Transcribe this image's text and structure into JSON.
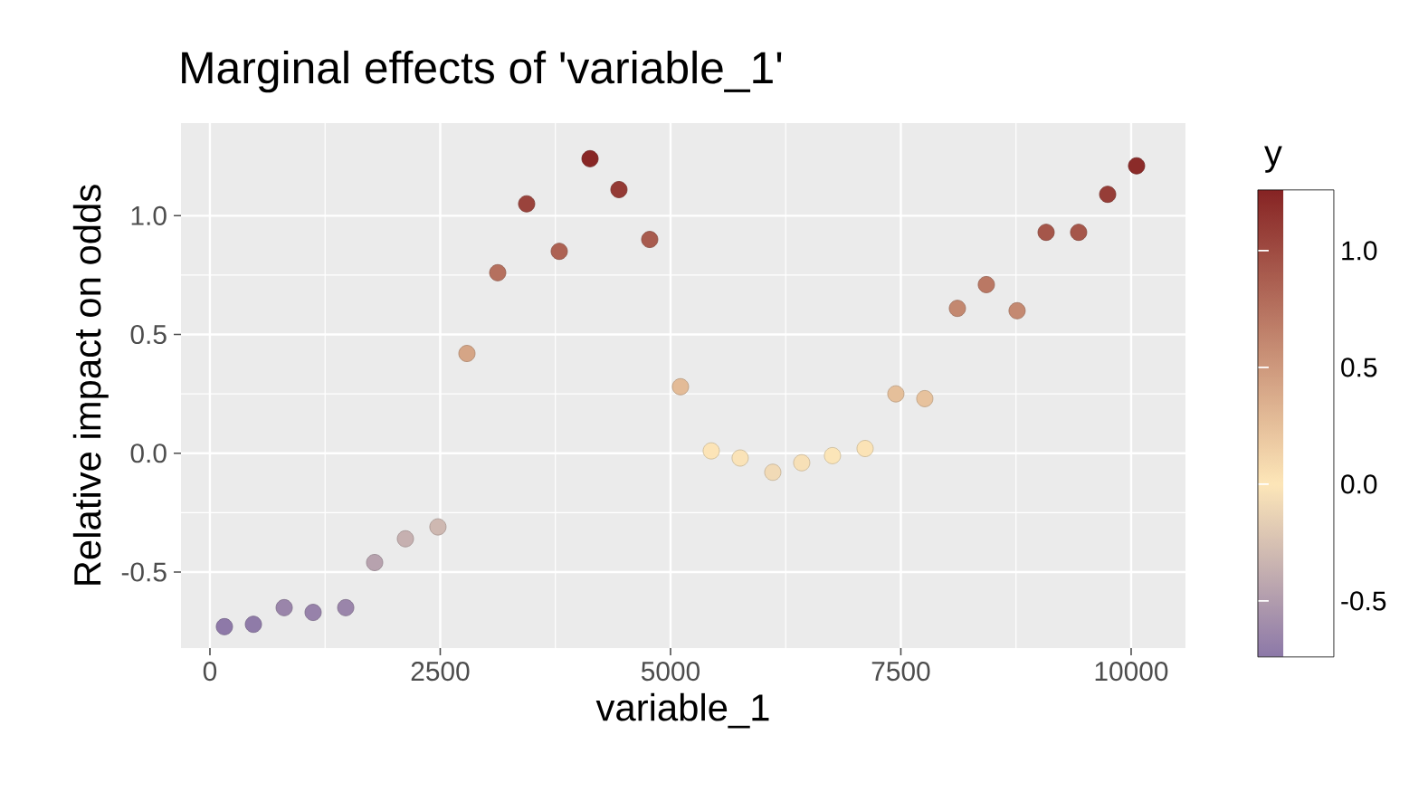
{
  "chart_data": {
    "type": "scatter",
    "title": "Marginal effects of 'variable_1'",
    "xlabel": "variable_1",
    "ylabel": "Relative impact on odds",
    "clabel": "y",
    "x": [
      157,
      472,
      806,
      1120,
      1474,
      1788,
      2122,
      2475,
      2790,
      3124,
      3438,
      3792,
      4126,
      4440,
      4774,
      5108,
      5442,
      5756,
      6110,
      6424,
      6758,
      7112,
      7446,
      7760,
      8114,
      8428,
      8762,
      9077,
      9430,
      9745,
      10059
    ],
    "values": [
      -0.73,
      -0.72,
      -0.65,
      -0.67,
      -0.65,
      -0.46,
      -0.36,
      -0.31,
      0.42,
      0.76,
      1.05,
      0.85,
      1.24,
      1.11,
      0.9,
      0.28,
      0.01,
      -0.02,
      -0.08,
      -0.04,
      -0.01,
      0.02,
      0.25,
      0.23,
      0.61,
      0.71,
      0.6,
      0.93,
      0.93,
      1.09,
      1.21
    ],
    "cvalues": [
      -0.73,
      -0.72,
      -0.65,
      -0.67,
      -0.65,
      -0.46,
      -0.36,
      -0.31,
      0.42,
      0.76,
      1.05,
      0.85,
      1.24,
      1.11,
      0.9,
      0.28,
      0.01,
      -0.02,
      -0.08,
      -0.04,
      -0.01,
      0.02,
      0.25,
      0.23,
      0.61,
      0.71,
      0.6,
      0.93,
      0.93,
      1.09,
      1.21
    ],
    "clim": [
      -0.74,
      1.26
    ],
    "cticks": [
      {
        "value": -0.5,
        "label": "-0.5"
      },
      {
        "value": 0,
        "label": "0.0"
      },
      {
        "value": 0.5,
        "label": "0.5"
      },
      {
        "value": 1,
        "label": "1.0"
      }
    ],
    "xlim": [
      -314,
      10590
    ],
    "ylim": [
      -0.82,
      1.39
    ],
    "xticks": [
      0,
      2500,
      5000,
      7500,
      10000
    ],
    "yticks": [
      {
        "value": -0.5,
        "label": "-0.5"
      },
      {
        "value": 0,
        "label": "0.0"
      },
      {
        "value": 0.5,
        "label": "0.5"
      },
      {
        "value": 1,
        "label": "1.0"
      }
    ],
    "grid": true,
    "marker": "circle"
  }
}
